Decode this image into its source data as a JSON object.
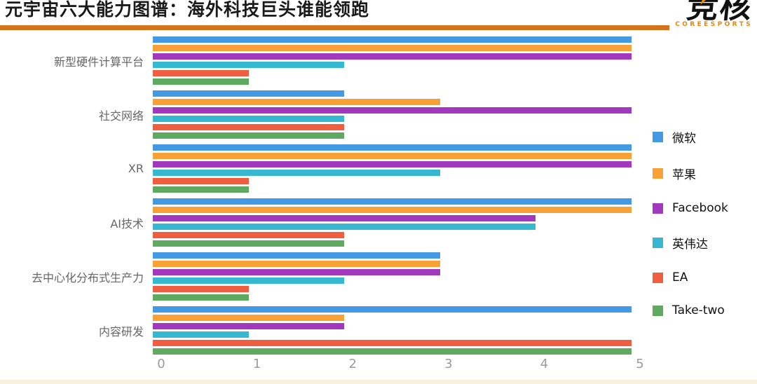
{
  "header": {
    "title": "元宇宙六大能力图谱：海外科技巨头谁能领跑",
    "underline_color": "#d5731c",
    "logo": {
      "name": "竞核",
      "subtitle": "COREESPORTS",
      "accent_color": "#f08300"
    }
  },
  "chart_data": {
    "type": "bar",
    "orientation": "horizontal",
    "title": "元宇宙六大能力图谱：海外科技巨头谁能领跑",
    "categories": [
      "新型硬件计算平台",
      "社交网络",
      "XR",
      "AI技术",
      "去中心化分布式生产力",
      "内容研发"
    ],
    "series": [
      {
        "name": "微软",
        "color": "#4499e5",
        "values": [
          5,
          2,
          5,
          5,
          3,
          5
        ]
      },
      {
        "name": "苹果",
        "color": "#f7a136",
        "values": [
          5,
          3,
          5,
          5,
          3,
          2
        ]
      },
      {
        "name": "Facebook",
        "color": "#a238be",
        "values": [
          5,
          5,
          5,
          4,
          3,
          2
        ]
      },
      {
        "name": "英伟达",
        "color": "#35b8d0",
        "values": [
          2,
          2,
          3,
          4,
          2,
          1
        ]
      },
      {
        "name": "EA",
        "color": "#f05e42",
        "values": [
          1,
          2,
          1,
          2,
          1,
          5
        ]
      },
      {
        "name": "Take-two",
        "color": "#5faa60",
        "values": [
          1,
          2,
          1,
          2,
          1,
          5
        ]
      }
    ],
    "xlabel": "",
    "ylabel": "",
    "xlim": [
      0,
      5
    ],
    "x_ticks": [
      "0",
      "1",
      "2",
      "3",
      "4",
      "5"
    ],
    "grid": false,
    "legend_position": "right",
    "tick_color": "#9b9b9b",
    "category_label_color": "#666666"
  },
  "footer": {
    "strip_color": "#f8f0de"
  }
}
